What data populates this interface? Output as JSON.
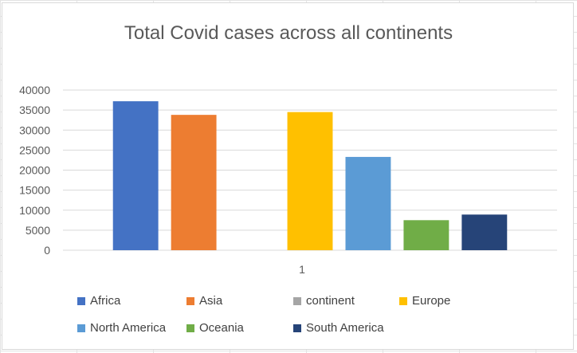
{
  "chart_data": {
    "type": "bar",
    "title": "Total Covid cases across all continents",
    "categories": [
      "1"
    ],
    "xlabel": "",
    "ylabel": "",
    "ylim": [
      0,
      40000
    ],
    "yticks": [
      0,
      5000,
      10000,
      15000,
      20000,
      25000,
      30000,
      35000,
      40000
    ],
    "grid": true,
    "legend_position": "bottom",
    "series": [
      {
        "name": "Africa",
        "values": [
          37200
        ],
        "color": "#4472C4"
      },
      {
        "name": "Asia",
        "values": [
          33800
        ],
        "color": "#ED7D31"
      },
      {
        "name": "continent",
        "values": [
          0
        ],
        "color": "#A5A5A5"
      },
      {
        "name": "Europe",
        "values": [
          34500
        ],
        "color": "#FFC000"
      },
      {
        "name": "North America",
        "values": [
          23300
        ],
        "color": "#5B9BD5"
      },
      {
        "name": "Oceania",
        "values": [
          7500
        ],
        "color": "#70AD47"
      },
      {
        "name": "South America",
        "values": [
          8900
        ],
        "color": "#264478"
      }
    ]
  }
}
